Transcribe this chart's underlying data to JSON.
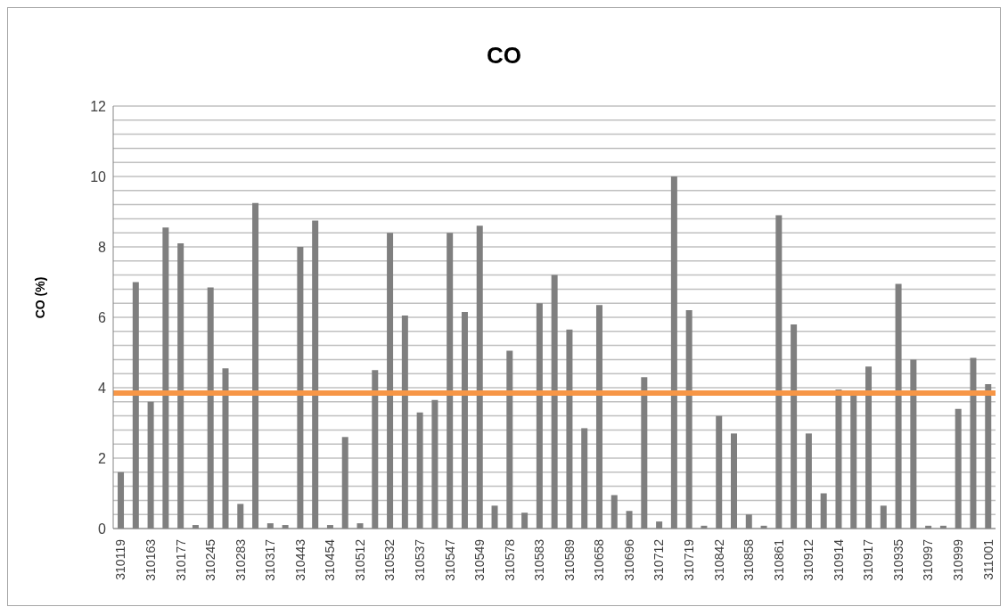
{
  "chart_data": {
    "type": "bar",
    "title": "CO",
    "ylabel": "CO (%)",
    "categories": [
      "310119",
      null,
      "310163",
      null,
      "310177",
      null,
      "310245",
      null,
      "310283",
      null,
      "310317",
      null,
      "310443",
      null,
      "310454",
      null,
      "310512",
      null,
      "310532",
      null,
      "310537",
      null,
      "310547",
      null,
      "310549",
      null,
      "310578",
      null,
      "310583",
      null,
      "310589",
      null,
      "310658",
      null,
      "310696",
      null,
      "310712",
      null,
      "310719",
      null,
      "310842",
      null,
      "310858",
      null,
      "310861",
      null,
      "310912",
      null,
      "310914",
      null,
      "310917",
      null,
      "310935",
      null,
      "310997",
      null,
      "310999",
      null,
      "311001"
    ],
    "values": [
      1.6,
      7.0,
      3.6,
      8.55,
      8.1,
      0.1,
      6.85,
      4.55,
      0.7,
      9.25,
      0.15,
      0.1,
      8.0,
      8.75,
      0.1,
      2.6,
      0.15,
      4.5,
      8.4,
      6.05,
      3.3,
      3.65,
      8.4,
      6.15,
      8.6,
      0.65,
      5.05,
      0.45,
      6.4,
      7.2,
      5.65,
      2.85,
      6.35,
      0.95,
      0.5,
      4.3,
      0.2,
      10.0,
      6.2,
      0.08,
      3.2,
      2.7,
      0.4,
      0.08,
      8.9,
      5.8,
      2.7,
      1.0,
      3.95,
      3.8,
      4.6,
      0.65,
      6.95,
      4.8,
      0.08,
      0.08,
      3.4,
      4.85,
      4.1
    ],
    "color": "#7f7f7f",
    "ylim": [
      0,
      12
    ],
    "yticks": [
      0,
      {
        "value": 0.4,
        "label": null
      },
      {
        "value": 0.8,
        "label": null
      },
      {
        "value": 1.2,
        "label": null
      },
      {
        "value": 1.6,
        "label": null
      },
      2,
      {
        "value": 2.4,
        "label": null
      },
      {
        "value": 2.8,
        "label": null
      },
      {
        "value": 3.2,
        "label": null
      },
      {
        "value": 3.6,
        "label": null
      },
      4,
      {
        "value": 4.4,
        "label": null
      },
      {
        "value": 4.8,
        "label": null
      },
      {
        "value": 5.2,
        "label": null
      },
      {
        "value": 5.6,
        "label": null
      },
      6,
      {
        "value": 6.4,
        "label": null
      },
      {
        "value": 6.8,
        "label": null
      },
      {
        "value": 7.2,
        "label": null
      },
      {
        "value": 7.6,
        "label": null
      },
      8,
      {
        "value": 8.4,
        "label": null
      },
      {
        "value": 8.8,
        "label": null
      },
      {
        "value": 9.2,
        "label": null
      },
      {
        "value": 9.6,
        "label": null
      },
      10,
      {
        "value": 10.4,
        "label": null
      },
      {
        "value": 10.8,
        "label": null
      },
      {
        "value": 11.2,
        "label": null
      },
      {
        "value": 11.6,
        "label": null
      },
      12
    ],
    "grid": true,
    "ref_lines": [
      {
        "axis": "y",
        "value": 3.85,
        "label": null,
        "color": "#f79646"
      }
    ]
  }
}
